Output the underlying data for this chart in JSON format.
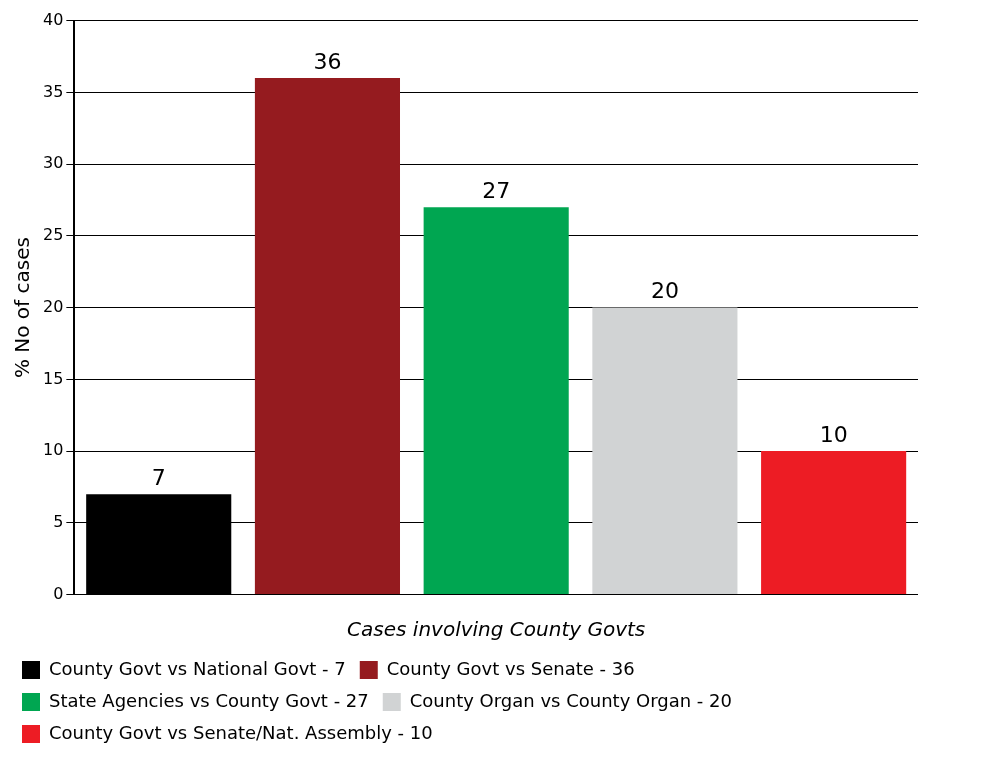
{
  "chart_data": {
    "type": "bar",
    "xlabel": "Cases involving County Govts",
    "ylabel": "% No of cases",
    "categories": [
      null,
      null,
      null,
      null,
      null
    ],
    "series": [
      {
        "name": "County Govt vs National Govt - 7",
        "color": "#000000",
        "values": [
          7,
          null,
          null,
          null,
          null
        ]
      },
      {
        "name": "County Govt vs Senate - 36",
        "color": "#951b1f",
        "values": [
          null,
          36,
          null,
          null,
          null
        ]
      },
      {
        "name": "State Agencies vs County Govt - 27",
        "color": "#00a651",
        "values": [
          null,
          null,
          27,
          null,
          null
        ]
      },
      {
        "name": "County Organ vs County Organ - 20",
        "color": "#d1d3d4",
        "values": [
          null,
          null,
          null,
          20,
          null
        ]
      },
      {
        "name": "County Govt vs Senate/Nat. Assembly - 10",
        "color": "#ed1c24",
        "values": [
          null,
          null,
          null,
          null,
          10
        ]
      }
    ],
    "ylim": [
      0,
      40
    ],
    "yticks": [
      0,
      5,
      10,
      15,
      20,
      25,
      30,
      35,
      40
    ],
    "grid": "y",
    "data_labels": true,
    "legend": "bottom"
  }
}
